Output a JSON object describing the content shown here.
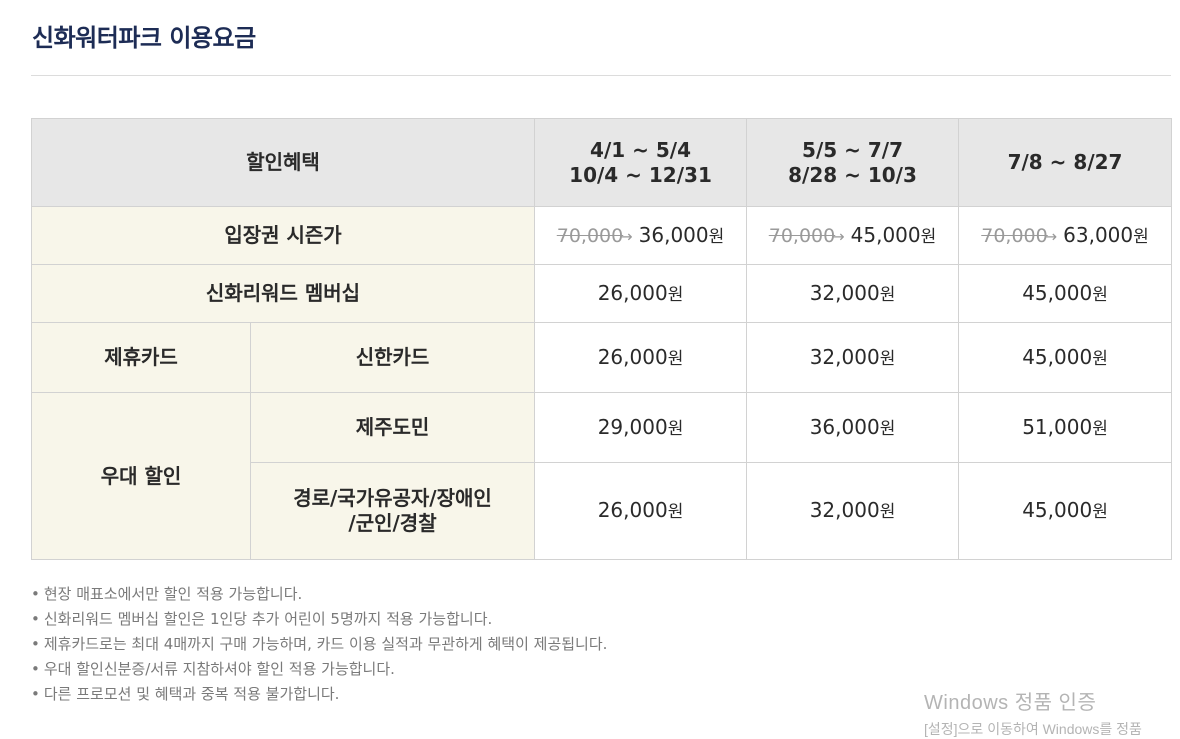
{
  "page": {
    "title": "신화워터파크 이용요금"
  },
  "table": {
    "header": {
      "benefit": "할인혜택",
      "periods": [
        {
          "line1": "4/1 ~ 5/4",
          "line2": "10/4 ~ 12/31"
        },
        {
          "line1": "5/5 ~ 7/7",
          "line2": "8/28 ~ 10/3"
        },
        {
          "line1": "7/8 ~ 8/27",
          "line2": ""
        }
      ]
    },
    "season_row": {
      "label": "입장권 시즌가",
      "prices": [
        {
          "old": "70,000",
          "new": "36,000",
          "unit": "원"
        },
        {
          "old": "70,000",
          "new": "45,000",
          "unit": "원"
        },
        {
          "old": "70,000",
          "new": "63,000",
          "unit": "원"
        }
      ]
    },
    "member_row": {
      "label": "신화리워드 멤버십",
      "prices": [
        "26,000",
        "32,000",
        "45,000"
      ]
    },
    "card_row": {
      "group": "제휴카드",
      "label": "신한카드",
      "prices": [
        "26,000",
        "32,000",
        "45,000"
      ]
    },
    "jeju_row": {
      "group": "우대 할인",
      "label": "제주도민",
      "prices": [
        "29,000",
        "36,000",
        "51,000"
      ]
    },
    "senior_row": {
      "label_line1": "경로/국가유공자/장애인",
      "label_line2": "/군인/경찰",
      "prices": [
        "26,000",
        "32,000",
        "45,000"
      ]
    },
    "unit": "원"
  },
  "notes": [
    "현장 매표소에서만 할인 적용 가능합니다.",
    "신화리워드 멤버십 할인은 1인당 추가 어린이 5명까지 적용 가능합니다.",
    "제휴카드로는 최대 4매까지 구매 가능하며, 카드 이용 실적과 무관하게 혜택이 제공됩니다.",
    "우대 할인신분증/서류 지참하셔야 할인 적용 가능합니다.",
    "다른 프로모션 및 혜택과 중복 적용 불가합니다."
  ],
  "bullet": "•",
  "arrow_glyph": "→",
  "watermark": {
    "title": "Windows 정품 인증",
    "subtitle": "[설정]으로 이동하여 Windows를 정품"
  },
  "colors": {
    "title": "#1d2c55",
    "header_bg": "#e7e7e7",
    "label_bg": "#f8f6ea",
    "border": "#d2d2d2",
    "strike": "#9a9a9a"
  }
}
